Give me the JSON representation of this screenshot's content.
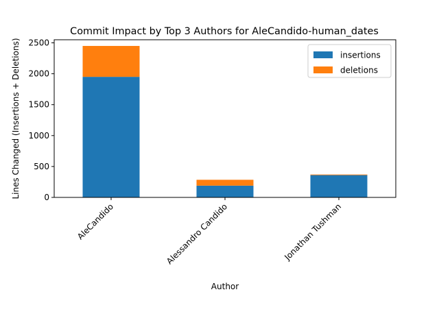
{
  "chart_data": {
    "type": "bar",
    "stacked": true,
    "title": "Commit Impact by Top 3 Authors for AleCandido-human_dates",
    "xlabel": "Author",
    "ylabel": "Lines Changed (Insertions + Deletions)",
    "categories": [
      "AleCandido",
      "Alessandro Candido",
      "Jonathan Tushman"
    ],
    "series": [
      {
        "name": "insertions",
        "values": [
          1950,
          190,
          360
        ],
        "color": "#1f77b4"
      },
      {
        "name": "deletions",
        "values": [
          500,
          95,
          10
        ],
        "color": "#ff7f0e"
      }
    ],
    "ylim": [
      0,
      2550
    ],
    "yticks": [
      0,
      500,
      1000,
      1500,
      2000,
      2500
    ],
    "grid": false,
    "legend_position": "top-right"
  }
}
